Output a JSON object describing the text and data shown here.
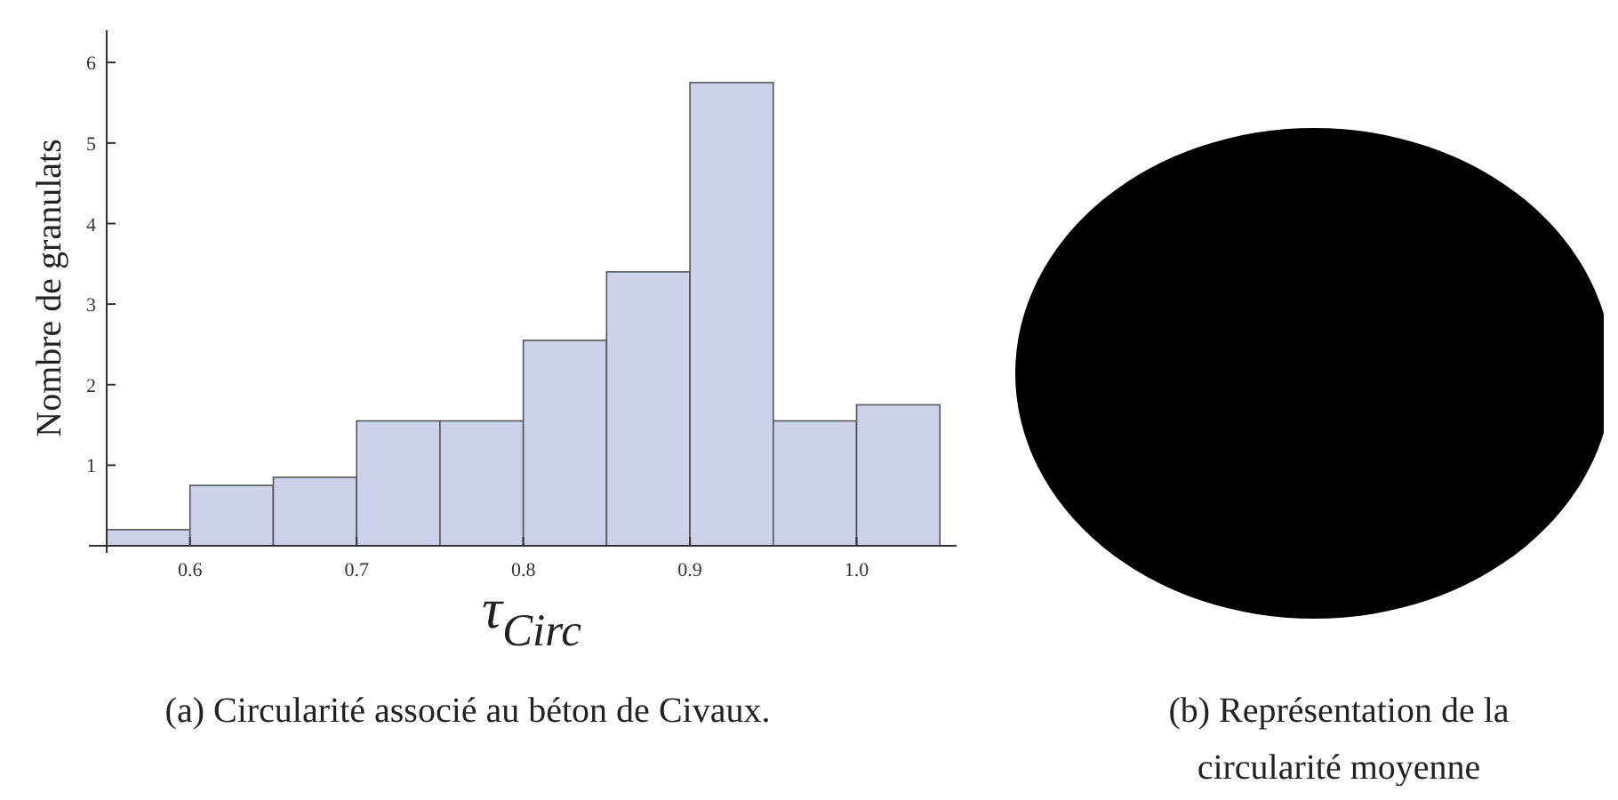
{
  "chart_data": {
    "type": "histogram",
    "bins": [
      0.55,
      0.6,
      0.65,
      0.7,
      0.75,
      0.8,
      0.85,
      0.9,
      0.95,
      1.0,
      1.05
    ],
    "values": [
      0.2,
      0.75,
      0.85,
      1.55,
      1.55,
      2.55,
      3.4,
      5.75,
      1.55,
      1.75
    ],
    "color": "#cdd2ea",
    "xlabel": "τ$_{Circ}$",
    "ylabel": "Nombre de granulats",
    "xlim": [
      0.55,
      1.06
    ],
    "xticks": [
      {
        "value": 0.6,
        "label": "0.6"
      },
      {
        "value": 0.7,
        "label": "0.7"
      },
      {
        "value": 0.8,
        "label": "0.8"
      },
      {
        "value": 0.9,
        "label": "0.9"
      },
      {
        "value": 1.0,
        "label": "1.0"
      }
    ],
    "ylim": [
      0,
      6.4
    ],
    "yticks": [
      1,
      2,
      3,
      4,
      5,
      6
    ],
    "annotations": [
      "(a) Circularité associé au béton de Civaux.",
      "(b) Représentation de la circularité moyenne"
    ]
  }
}
